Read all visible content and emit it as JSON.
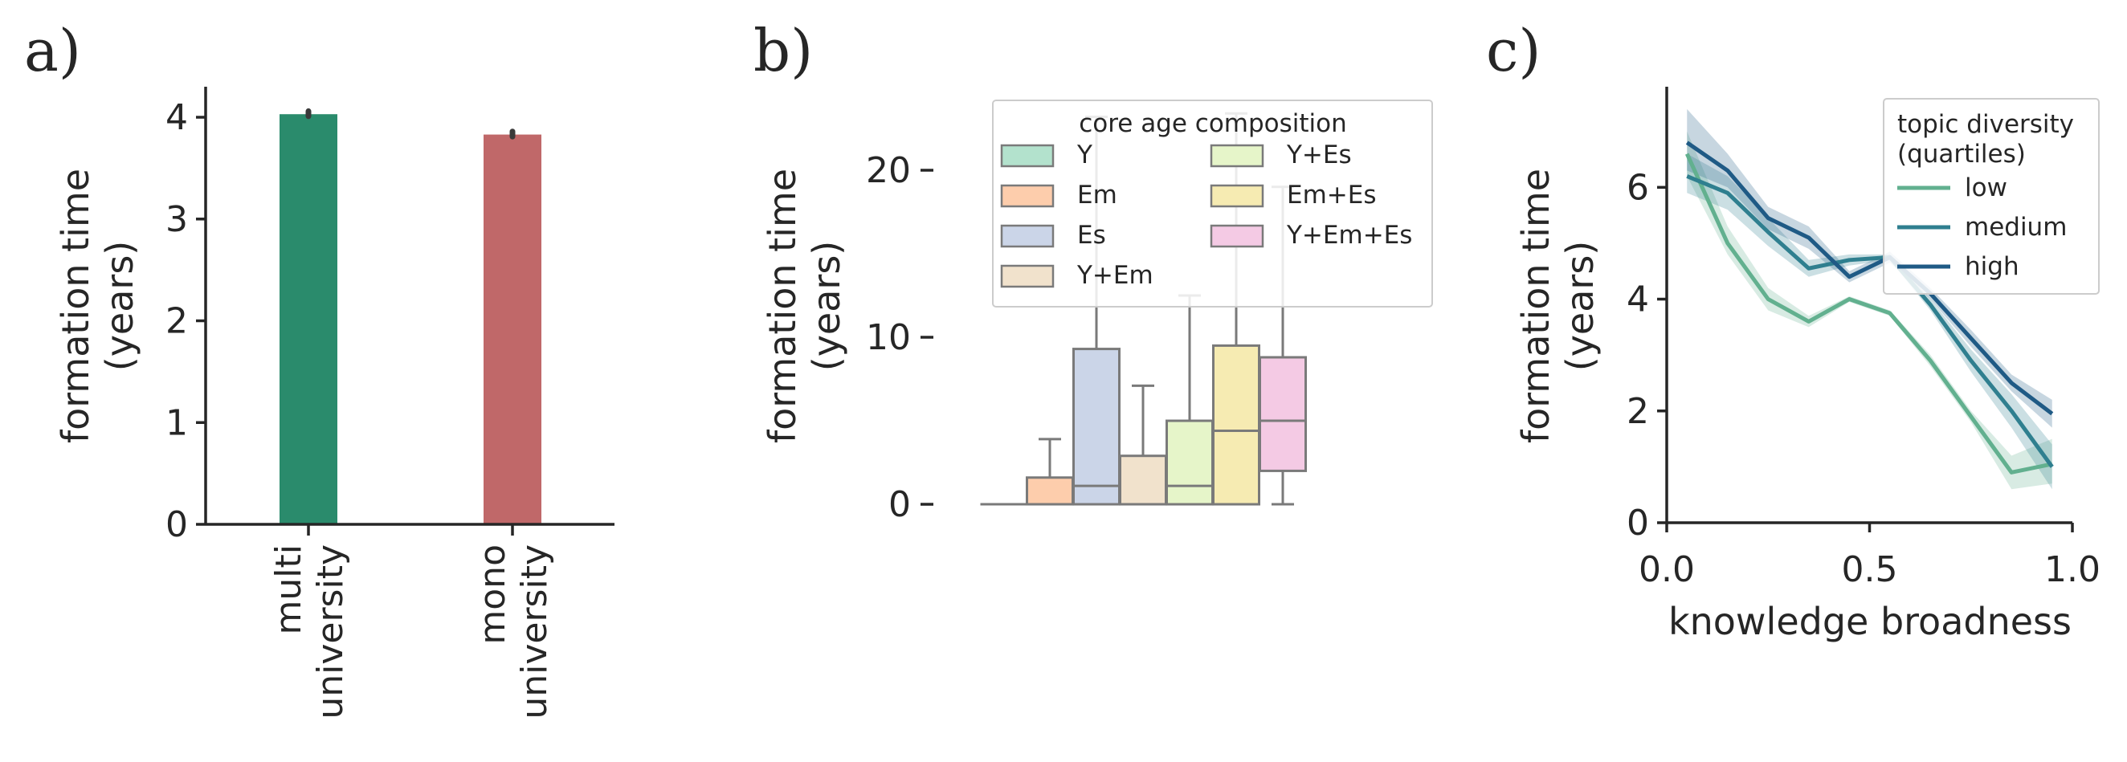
{
  "colors": {
    "axis": "#262626",
    "bar_multi": "#2a8b6c",
    "bar_mono": "#c06869",
    "box_edge": "#7a7a7a",
    "legend_edge": "#cccccc",
    "div_low": "#62b08f",
    "div_medium": "#2f7f8f",
    "div_high": "#1f5a85"
  },
  "chart_data": [
    {
      "panel_label": "a)",
      "type": "bar",
      "ylabel_lines": [
        "formation time",
        "(years)"
      ],
      "xlabel": "",
      "ylim": [
        0,
        4.3
      ],
      "yticks": [
        0,
        1,
        2,
        3,
        4
      ],
      "grid": false,
      "categories": [
        {
          "lines": [
            "multi",
            "university"
          ],
          "value": 4.03,
          "err_low": 4.01,
          "err_high": 4.06,
          "color": "#2a8b6c"
        },
        {
          "lines": [
            "mono",
            "university"
          ],
          "value": 3.83,
          "err_low": 3.81,
          "err_high": 3.86,
          "color": "#c06869"
        }
      ]
    },
    {
      "panel_label": "b)",
      "type": "box",
      "ylabel_lines": [
        "formation time",
        "(years)"
      ],
      "xlabel": "",
      "ylim": [
        -1.2,
        25
      ],
      "yticks": [
        0,
        10,
        20
      ],
      "grid": false,
      "legend": {
        "title": "core age composition",
        "position": "upper-right",
        "ncol": 2
      },
      "groups": [
        {
          "name": "Y",
          "color": "#b3e2cd",
          "q1": 0,
          "median": 0,
          "q3": 0,
          "whislo": 0,
          "whishi": 0
        },
        {
          "name": "Em",
          "color": "#fdcdac",
          "q1": 0,
          "median": 0,
          "q3": 1.6,
          "whislo": 0,
          "whishi": 3.9
        },
        {
          "name": "Es",
          "color": "#cbd5e8",
          "q1": 0,
          "median": 1.1,
          "q3": 9.3,
          "whislo": 0,
          "whishi": 23.2
        },
        {
          "name": "Y+Em",
          "color": "#f1e2cc",
          "q1": 0,
          "median": 0,
          "q3": 2.9,
          "whislo": 0,
          "whishi": 7.1
        },
        {
          "name": "Y+Es",
          "color": "#e6f5c9",
          "q1": 0,
          "median": 1.1,
          "q3": 5.0,
          "whislo": 0,
          "whishi": 12.5
        },
        {
          "name": "Em+Es",
          "color": "#f6ebb2",
          "q1": 0,
          "median": 4.4,
          "q3": 9.5,
          "whislo": 0,
          "whishi": 23.4
        },
        {
          "name": "Y+Em+Es",
          "color": "#f4cae4",
          "q1": 2.0,
          "median": 5.0,
          "q3": 8.8,
          "whislo": 0,
          "whishi": 19.0
        }
      ]
    },
    {
      "panel_label": "c)",
      "type": "line",
      "ylabel_lines": [
        "formation time",
        "(years)"
      ],
      "xlabel": "knowledge broadness",
      "xlim": [
        0,
        1
      ],
      "ylim": [
        0,
        7.8
      ],
      "xticks": [
        0.0,
        0.5,
        1.0
      ],
      "xtick_labels": [
        "0.0",
        "0.5",
        "1.0"
      ],
      "yticks": [
        0,
        2,
        4,
        6
      ],
      "grid": false,
      "legend": {
        "title_lines": [
          "topic diversity",
          "(quartiles)"
        ],
        "position": "upper-right"
      },
      "x": [
        0.05,
        0.15,
        0.25,
        0.35,
        0.45,
        0.55,
        0.65,
        0.75,
        0.85,
        0.95
      ],
      "series": [
        {
          "name": "low",
          "color": "#62b08f",
          "values": [
            6.6,
            5.0,
            4.0,
            3.6,
            4.0,
            3.75,
            2.9,
            1.9,
            0.9,
            1.05
          ],
          "lower": [
            6.2,
            4.8,
            3.8,
            3.5,
            3.95,
            3.7,
            2.8,
            1.8,
            0.6,
            0.7
          ],
          "upper": [
            7.0,
            5.3,
            4.2,
            3.7,
            4.05,
            3.8,
            3.0,
            2.0,
            1.2,
            1.5
          ]
        },
        {
          "name": "medium",
          "color": "#2f7f8f",
          "values": [
            6.2,
            5.9,
            5.2,
            4.55,
            4.7,
            4.75,
            3.9,
            2.9,
            2.0,
            1.0
          ],
          "lower": [
            5.9,
            5.6,
            4.95,
            4.4,
            4.6,
            4.7,
            3.8,
            2.7,
            1.7,
            0.6
          ],
          "upper": [
            6.6,
            6.2,
            5.45,
            4.7,
            4.8,
            4.8,
            4.0,
            3.1,
            2.3,
            1.4
          ]
        },
        {
          "name": "high",
          "color": "#1f5a85",
          "values": [
            6.8,
            6.3,
            5.45,
            5.1,
            4.4,
            4.75,
            4.1,
            3.3,
            2.5,
            1.95
          ],
          "lower": [
            6.3,
            6.0,
            5.25,
            4.9,
            4.3,
            4.65,
            4.0,
            3.15,
            2.35,
            1.7
          ],
          "upper": [
            7.4,
            6.6,
            5.65,
            5.3,
            4.5,
            4.85,
            4.2,
            3.45,
            2.65,
            2.2
          ]
        }
      ]
    }
  ]
}
